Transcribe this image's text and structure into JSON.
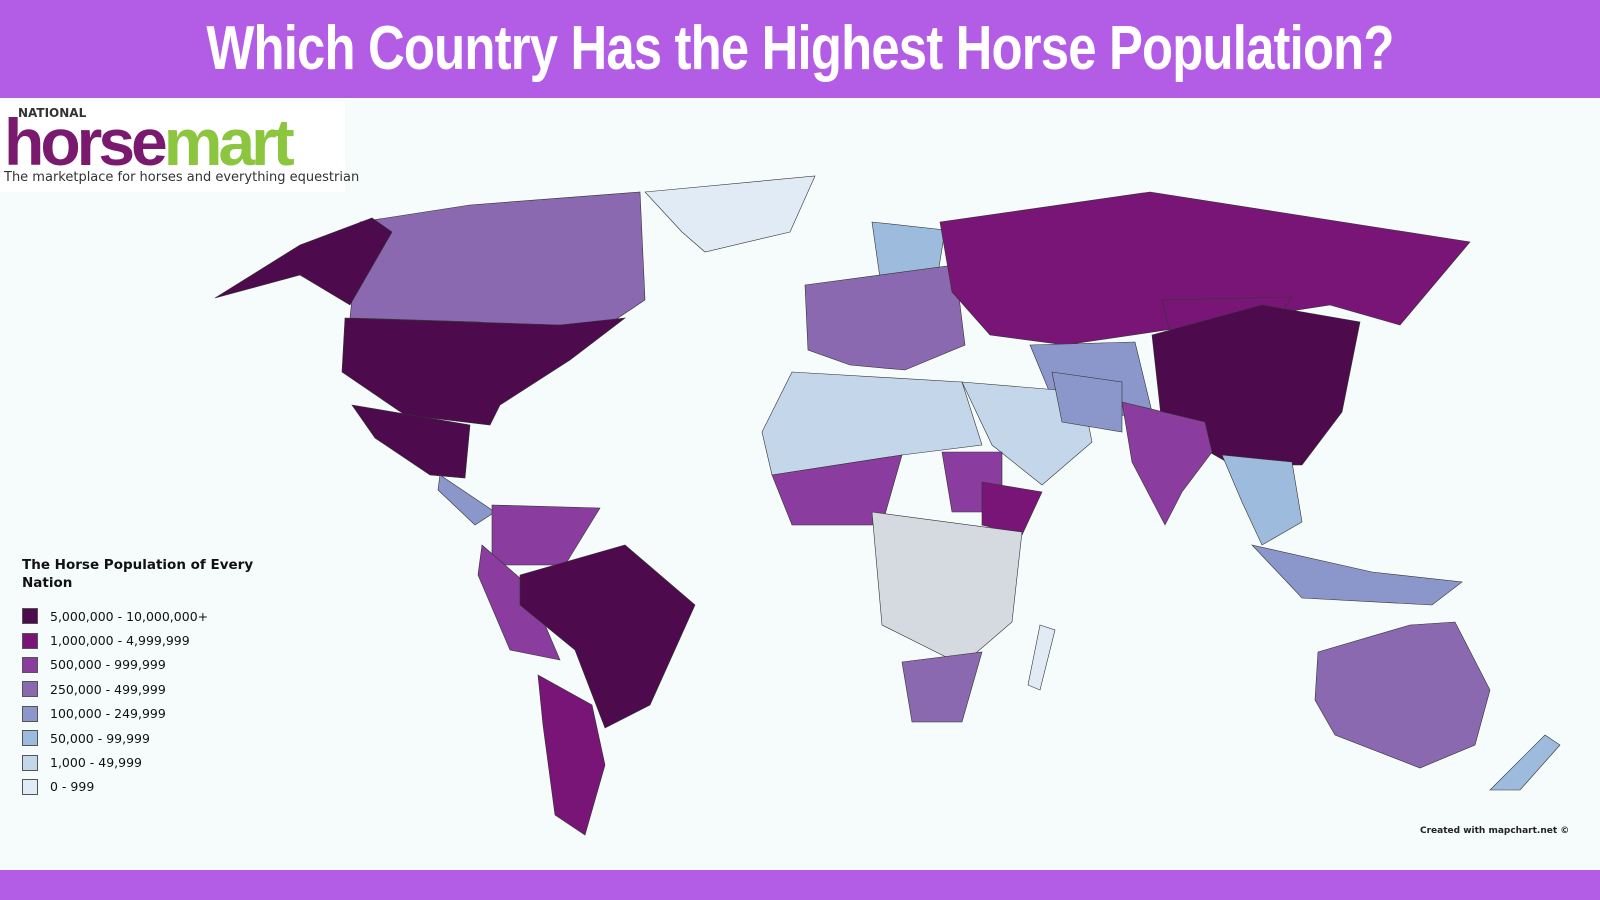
{
  "title": "Which Country Has the Highest Horse Population?",
  "logo": {
    "top": "NATIONAL",
    "word1": "horse",
    "word2": "mart",
    "tagline": "The marketplace for horses and everything equestrian"
  },
  "legend": {
    "title": "The Horse Population of Every Nation",
    "items": [
      {
        "label": "5,000,000 - 10,000,000+",
        "color": "#4d0a4d"
      },
      {
        "label": "1,000,000 - 4,999,999",
        "color": "#7a1578"
      },
      {
        "label": "500,000 - 999,999",
        "color": "#8a3d9e"
      },
      {
        "label": "250,000 - 499,999",
        "color": "#8b69b0"
      },
      {
        "label": "100,000 - 249,999",
        "color": "#8b96cb"
      },
      {
        "label": "50,000 - 99,999",
        "color": "#9dbbdc"
      },
      {
        "label": "1,000 - 49,999",
        "color": "#c4d6ea"
      },
      {
        "label": "0 - 999",
        "color": "#e1ebf5"
      }
    ]
  },
  "credit": "Created with mapchart.net ©"
}
